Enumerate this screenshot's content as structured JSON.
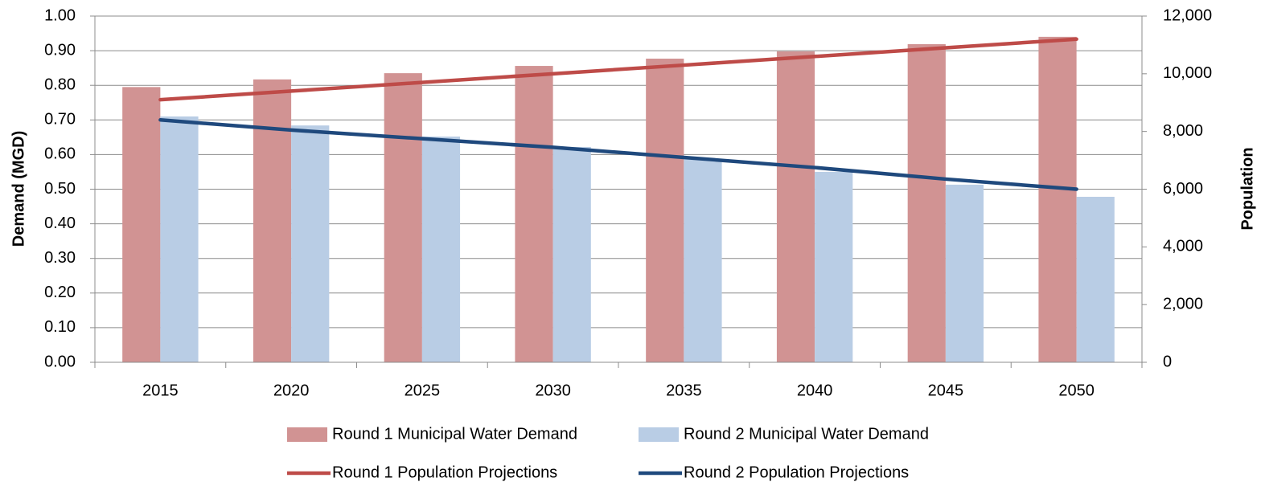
{
  "chart_data": {
    "type": "bar-line",
    "y_label": "Demand (MGD)",
    "y2_label": "Population",
    "categories": [
      "2015",
      "2020",
      "2025",
      "2030",
      "2035",
      "2040",
      "2045",
      "2050"
    ],
    "series": [
      {
        "name": "Round 1 Municipal Water Demand",
        "type": "bar",
        "color": "#d19393",
        "values": [
          0.795,
          0.817,
          0.835,
          0.856,
          0.877,
          0.898,
          0.919,
          0.94
        ]
      },
      {
        "name": "Round 2 Municipal Water Demand",
        "type": "bar",
        "color": "#b9cde5",
        "values": [
          0.71,
          0.684,
          0.652,
          0.622,
          0.587,
          0.55,
          0.513,
          0.478
        ]
      },
      {
        "name": "Round 1 Population Projections",
        "type": "line",
        "axis": "y2",
        "color": "#be4b48",
        "values": [
          9100,
          9400,
          9700,
          10000,
          10300,
          10600,
          10900,
          11200
        ]
      },
      {
        "name": "Round 2 Population Projections",
        "type": "line",
        "axis": "y2",
        "color": "#1f497d",
        "values": [
          8400,
          8050,
          7750,
          7450,
          7100,
          6750,
          6350,
          6000
        ]
      }
    ],
    "ylim": [
      0,
      1
    ],
    "yticks": [
      {
        "value": 0,
        "label": "0.00"
      },
      {
        "value": 0.1,
        "label": "0.10"
      },
      {
        "value": 0.2,
        "label": "0.20"
      },
      {
        "value": 0.3,
        "label": "0.30"
      },
      {
        "value": 0.4,
        "label": "0.40"
      },
      {
        "value": 0.5,
        "label": "0.50"
      },
      {
        "value": 0.6,
        "label": "0.60"
      },
      {
        "value": 0.7,
        "label": "0.70"
      },
      {
        "value": 0.8,
        "label": "0.80"
      },
      {
        "value": 0.9,
        "label": "0.90"
      },
      {
        "value": 1,
        "label": "1.00"
      }
    ],
    "y2lim": [
      0,
      12000
    ],
    "y2ticks": [
      0,
      {
        "value": 2000,
        "label": "2,000"
      },
      {
        "value": 4000,
        "label": "4,000"
      },
      {
        "value": 6000,
        "label": "6,000"
      },
      {
        "value": 8000,
        "label": "8,000"
      },
      {
        "value": 10000,
        "label": "10,000"
      },
      {
        "value": 12000,
        "label": "12,000"
      }
    ],
    "grid": true,
    "legend": "bottom"
  }
}
